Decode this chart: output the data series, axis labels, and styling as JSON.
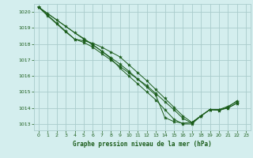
{
  "background_color": "#d4eeee",
  "grid_color": "#aacccc",
  "line_color": "#1a5c1a",
  "marker_color": "#1a5c1a",
  "title": "Graphe pression niveau de la mer (hPa)",
  "title_color": "#1a5c1a",
  "ylim": [
    1012.6,
    1020.5
  ],
  "yticks": [
    1013,
    1014,
    1015,
    1016,
    1017,
    1018,
    1019,
    1020
  ],
  "xlim": [
    -0.5,
    23.5
  ],
  "xticks": [
    0,
    1,
    2,
    3,
    4,
    5,
    6,
    7,
    8,
    9,
    10,
    11,
    12,
    13,
    14,
    15,
    16,
    17,
    18,
    19,
    20,
    21,
    22,
    23
  ],
  "series": [
    [
      1020.3,
      1019.9,
      1019.5,
      1019.1,
      1018.7,
      1018.35,
      1017.95,
      1017.55,
      1017.15,
      1016.75,
      1016.3,
      1015.8,
      1015.3,
      1014.8,
      1013.4,
      1013.15,
      1013.05,
      1013.1,
      1013.5,
      1013.9,
      1013.9,
      1014.1,
      1014.4,
      null
    ],
    [
      1020.3,
      1019.8,
      1019.3,
      1018.8,
      1018.3,
      1018.2,
      1018.05,
      1017.8,
      1017.5,
      1017.2,
      1016.7,
      1016.2,
      1015.7,
      1015.15,
      1014.6,
      1014.05,
      1013.5,
      1013.1,
      1013.5,
      1013.9,
      1013.9,
      1014.0,
      1014.3,
      null
    ],
    [
      1020.3,
      1019.75,
      1019.25,
      1018.75,
      1018.3,
      1018.1,
      1017.8,
      1017.4,
      1017.0,
      1016.6,
      1016.2,
      1015.8,
      1015.4,
      1014.9,
      1014.4,
      1013.9,
      1013.35,
      1013.05,
      1013.5,
      1013.9,
      1013.85,
      1014.0,
      1014.3,
      null
    ],
    [
      1020.3,
      null,
      null,
      null,
      null,
      1018.3,
      1017.95,
      1017.55,
      1017.1,
      1016.5,
      1016.0,
      1015.5,
      1015.0,
      1014.5,
      1013.9,
      1013.3,
      1013.0,
      1013.0,
      1013.5,
      1013.9,
      1013.85,
      1014.05,
      1014.45,
      null
    ]
  ]
}
